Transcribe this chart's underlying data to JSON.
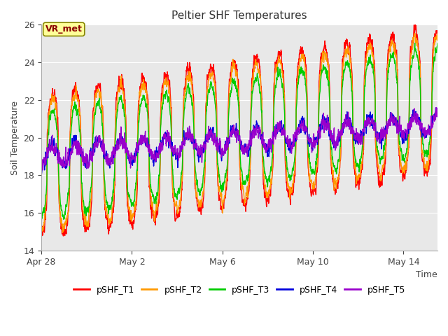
{
  "title": "Peltier SHF Temperatures",
  "xlabel": "Time",
  "ylabel": "Soil Temperature",
  "ylim": [
    14,
    26
  ],
  "yticks": [
    14,
    16,
    18,
    20,
    22,
    24,
    26
  ],
  "num_days": 17.5,
  "points_per_day": 144,
  "series_names": [
    "pSHF_T1",
    "pSHF_T2",
    "pSHF_T3",
    "pSHF_T4",
    "pSHF_T5"
  ],
  "series_colors": [
    "#ff0000",
    "#ff9900",
    "#00cc00",
    "#0000dd",
    "#9900cc"
  ],
  "series_params": [
    {
      "base_mean": 18.5,
      "mean_slope": 0.2,
      "amplitude": 3.8,
      "sharpness": 3.0,
      "noise": 0.3,
      "damping": 1.0
    },
    {
      "base_mean": 18.5,
      "mean_slope": 0.2,
      "amplitude": 3.5,
      "sharpness": 2.5,
      "noise": 0.25,
      "damping": 1.0
    },
    {
      "base_mean": 18.5,
      "mean_slope": 0.2,
      "amplitude": 2.8,
      "sharpness": 2.0,
      "noise": 0.2,
      "damping": 1.0
    },
    {
      "base_mean": 19.0,
      "mean_slope": 0.1,
      "amplitude": 1.2,
      "sharpness": 1.0,
      "noise": 0.3,
      "damping": 0.5
    },
    {
      "base_mean": 19.0,
      "mean_slope": 0.1,
      "amplitude": 1.0,
      "sharpness": 1.0,
      "noise": 0.35,
      "damping": 0.5
    }
  ],
  "annotation_text": "VR_met",
  "annotation_color": "#8b0000",
  "annotation_bg": "#ffff99",
  "annotation_border": "#888800",
  "plot_bg": "#e8e8e8",
  "grid_color": "#ffffff",
  "line_width": 1.0,
  "xtick_dates": [
    "Apr 28",
    "May 2",
    "May 6",
    "May 10",
    "May 14"
  ],
  "xtick_offsets_days": [
    0,
    4,
    8,
    12,
    16
  ]
}
